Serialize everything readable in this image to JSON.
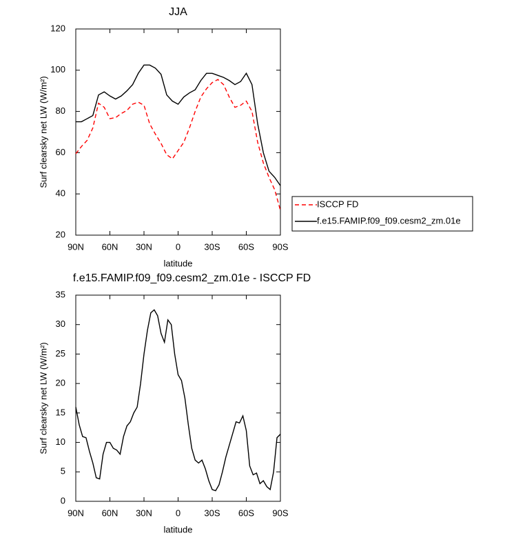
{
  "chart_data": [
    {
      "type": "line",
      "title": "JJA",
      "x_label": "latitude",
      "y_label": "Surf clearsky net LW (W/m²)",
      "x": [
        90,
        85,
        80,
        75,
        70,
        65,
        60,
        55,
        50,
        45,
        40,
        35,
        30,
        25,
        20,
        15,
        10,
        5,
        0,
        -5,
        -10,
        -15,
        -20,
        -25,
        -30,
        -35,
        -40,
        -45,
        -50,
        -55,
        -60,
        -65,
        -70,
        -75,
        -80,
        -85,
        -90
      ],
      "series": [
        {
          "name": "ISCCP FD",
          "color": "#ff0000",
          "line_style": "dashed",
          "values": [
            59.5,
            63,
            66,
            72,
            84,
            82,
            76.5,
            77,
            79,
            80.5,
            83.5,
            84.5,
            83,
            74,
            69,
            64.5,
            59,
            57,
            61,
            65,
            72,
            80,
            87,
            91,
            94,
            95.5,
            93,
            87,
            82,
            83,
            85,
            80,
            65,
            55,
            48,
            42,
            32
          ]
        },
        {
          "name": "f.e15.FAMIP.f09_f09.cesm2_zm.01e",
          "color": "#000000",
          "line_style": "solid",
          "values": [
            75,
            75,
            76.5,
            78,
            88,
            89.5,
            87.5,
            86,
            87.5,
            90,
            93,
            98.5,
            102.5,
            102.5,
            101,
            98,
            88,
            85,
            83.5,
            87,
            89,
            90.5,
            95,
            98.5,
            98.5,
            97.5,
            96.5,
            95,
            93,
            94.5,
            98.5,
            93,
            74,
            60,
            51,
            48,
            44
          ]
        }
      ],
      "xlim": [
        90,
        -90
      ],
      "xticks": [
        {
          "value": 90,
          "label": "90N"
        },
        {
          "value": 60,
          "label": "60N"
        },
        {
          "value": 30,
          "label": "30N"
        },
        0,
        {
          "value": -30,
          "label": "30S"
        },
        {
          "value": -60,
          "label": "60S"
        },
        {
          "value": -90,
          "label": "90S"
        }
      ],
      "ylim": [
        20,
        120
      ],
      "yticks": [
        20,
        40,
        60,
        80,
        100,
        120
      ],
      "grid": false,
      "legend": "right"
    },
    {
      "type": "line",
      "title": "f.e15.FAMIP.f09_f09.cesm2_zm.01e - ISCCP FD",
      "x_label": "latitude",
      "y_label": "Surf clearsky net LW (W/m²)",
      "x": [
        90,
        87,
        84,
        81,
        78,
        75,
        72,
        69,
        66,
        63,
        60,
        57,
        54,
        51,
        48,
        45,
        42,
        39,
        36,
        33,
        30,
        27,
        24,
        21,
        18,
        15,
        12,
        9,
        6,
        3,
        0,
        -3,
        -6,
        -9,
        -12,
        -15,
        -18,
        -21,
        -24,
        -27,
        -30,
        -33,
        -36,
        -39,
        -42,
        -45,
        -48,
        -51,
        -54,
        -57,
        -60,
        -63,
        -66,
        -69,
        -72,
        -75,
        -78,
        -81,
        -84,
        -87,
        -90
      ],
      "values": [
        16,
        13,
        11,
        10.8,
        8.5,
        6.5,
        4,
        3.8,
        8,
        10,
        10,
        9,
        8.7,
        8,
        11,
        12.8,
        13.5,
        15,
        16,
        20,
        25,
        29,
        32,
        32.5,
        31.5,
        28.5,
        27,
        30.8,
        30,
        25,
        21.5,
        20.5,
        17.5,
        13,
        9,
        7,
        6.5,
        7,
        5.5,
        3.5,
        2,
        1.8,
        2.8,
        5,
        7.5,
        9.5,
        11.5,
        13.5,
        13.3,
        14.5,
        12,
        6,
        4.5,
        4.8,
        3,
        3.5,
        2.5,
        2,
        5,
        10.8,
        11.4
      ],
      "color": "#000000",
      "xlim": [
        90,
        -90
      ],
      "xticks": [
        {
          "value": 90,
          "label": "90N"
        },
        {
          "value": 60,
          "label": "60N"
        },
        {
          "value": 30,
          "label": "30N"
        },
        0,
        {
          "value": -30,
          "label": "30S"
        },
        {
          "value": -60,
          "label": "60S"
        },
        {
          "value": -90,
          "label": "90S"
        }
      ],
      "ylim": [
        0,
        35
      ],
      "yticks": [
        0,
        5,
        10,
        15,
        20,
        25,
        30,
        35
      ],
      "grid": false
    }
  ]
}
